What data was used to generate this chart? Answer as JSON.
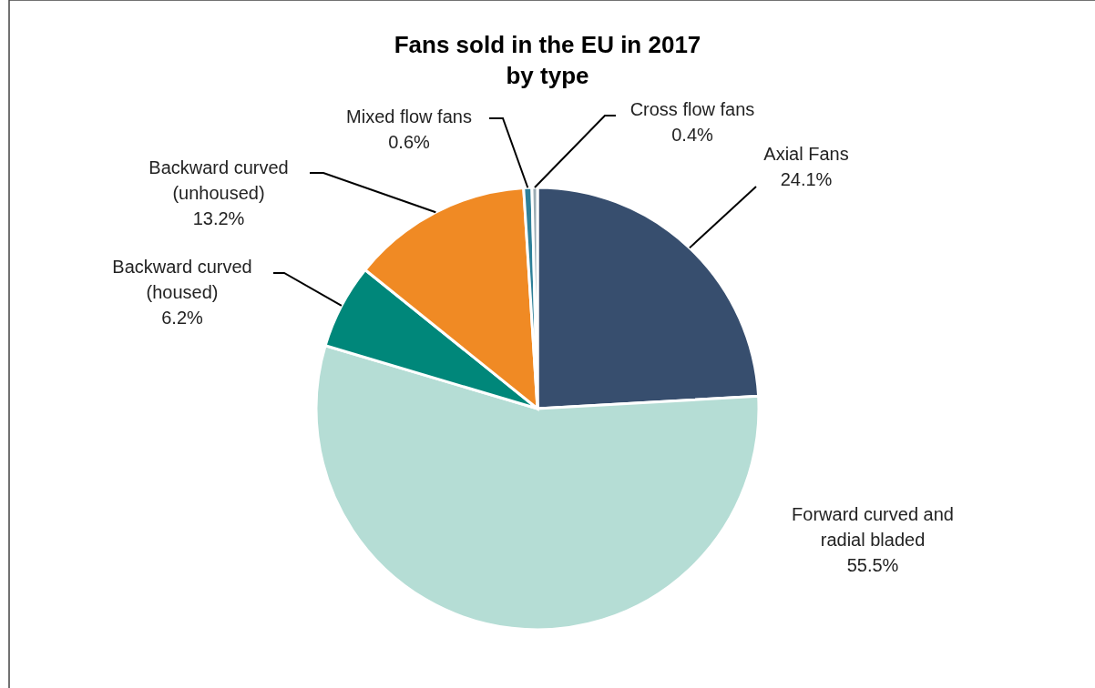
{
  "chart_data": {
    "type": "pie",
    "title": "Fans sold in the EU in 2017 by type",
    "categories": [
      "Axial Fans",
      "Forward curved and radial bladed",
      "Backward curved (housed)",
      "Backward curved (unhoused)",
      "Mixed flow fans",
      "Cross flow fans"
    ],
    "values": [
      24.1,
      55.5,
      6.2,
      13.2,
      0.6,
      0.4
    ],
    "colors": [
      "#374e6e",
      "#b5ddd5",
      "#00877a",
      "#f08a24",
      "#2e8099",
      "#9aabb3"
    ],
    "value_labels": [
      "24.1%",
      "55.5%",
      "6.2%",
      "13.2%",
      "0.6%",
      "0.4%"
    ]
  }
}
